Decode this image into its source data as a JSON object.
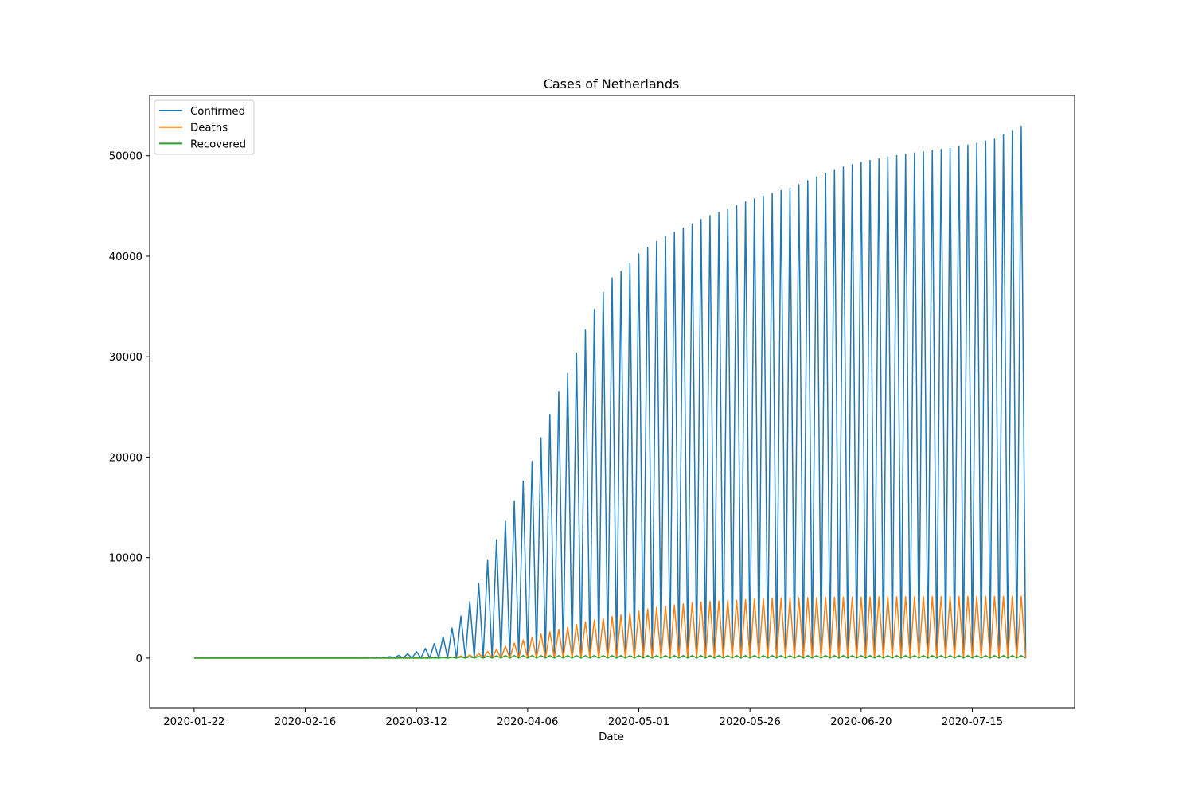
{
  "chart_data": {
    "type": "line",
    "title": "Cases of Netherlands",
    "xlabel": "Date",
    "ylabel": "",
    "x_start": "2020-01-22",
    "x_end": "2020-07-27",
    "xlim": [
      "2020-01-12",
      "2020-08-07"
    ],
    "ylim": [
      -5000,
      56000
    ],
    "x_ticks": [
      "2020-01-22",
      "2020-02-16",
      "2020-03-12",
      "2020-04-06",
      "2020-05-01",
      "2020-05-26",
      "2020-06-20",
      "2020-07-15"
    ],
    "y_ticks": [
      0,
      10000,
      20000,
      30000,
      40000,
      50000
    ],
    "legend_position": "top-left",
    "grid": false,
    "note_pattern": "each series alternates between its cumulative value and 0 on consecutive dates",
    "series": [
      {
        "name": "Confirmed",
        "color": "#1f77b4",
        "keyframes": [
          [
            "2020-01-22",
            0
          ],
          [
            "2020-02-26",
            0
          ],
          [
            "2020-03-01",
            10
          ],
          [
            "2020-03-05",
            82
          ],
          [
            "2020-03-08",
            265
          ],
          [
            "2020-03-11",
            503
          ],
          [
            "2020-03-14",
            959
          ],
          [
            "2020-03-17",
            1705
          ],
          [
            "2020-03-20",
            2994
          ],
          [
            "2020-03-23",
            4749
          ],
          [
            "2020-03-26",
            7431
          ],
          [
            "2020-03-29",
            10866
          ],
          [
            "2020-04-01",
            13614
          ],
          [
            "2020-04-04",
            16627
          ],
          [
            "2020-04-07",
            19580
          ],
          [
            "2020-04-10",
            23097
          ],
          [
            "2020-04-13",
            26551
          ],
          [
            "2020-04-16",
            29214
          ],
          [
            "2020-04-19",
            32655
          ],
          [
            "2020-04-22",
            35729
          ],
          [
            "2020-04-25",
            37845
          ],
          [
            "2020-04-28",
            38802
          ],
          [
            "2020-05-01",
            40236
          ],
          [
            "2020-05-06",
            41774
          ],
          [
            "2020-05-11",
            42788
          ],
          [
            "2020-05-16",
            43870
          ],
          [
            "2020-05-21",
            44700
          ],
          [
            "2020-05-26",
            45578
          ],
          [
            "2020-05-31",
            46257
          ],
          [
            "2020-06-05",
            46942
          ],
          [
            "2020-06-10",
            47903
          ],
          [
            "2020-06-15",
            48783
          ],
          [
            "2020-06-20",
            49345
          ],
          [
            "2020-06-25",
            49804
          ],
          [
            "2020-06-30",
            50147
          ],
          [
            "2020-07-05",
            50470
          ],
          [
            "2020-07-10",
            50746
          ],
          [
            "2020-07-15",
            51146
          ],
          [
            "2020-07-20",
            51657
          ],
          [
            "2020-07-25",
            52732
          ],
          [
            "2020-07-27",
            53151
          ]
        ]
      },
      {
        "name": "Deaths",
        "color": "#ff7f0e",
        "keyframes": [
          [
            "2020-01-22",
            0
          ],
          [
            "2020-03-05",
            0
          ],
          [
            "2020-03-10",
            4
          ],
          [
            "2020-03-15",
            20
          ],
          [
            "2020-03-20",
            106
          ],
          [
            "2020-03-25",
            356
          ],
          [
            "2020-03-30",
            864
          ],
          [
            "2020-04-04",
            1651
          ],
          [
            "2020-04-09",
            2396
          ],
          [
            "2020-04-14",
            2945
          ],
          [
            "2020-04-19",
            3601
          ],
          [
            "2020-04-24",
            4054
          ],
          [
            "2020-04-29",
            4475
          ],
          [
            "2020-05-04",
            4987
          ],
          [
            "2020-05-09",
            5288
          ],
          [
            "2020-05-14",
            5562
          ],
          [
            "2020-05-19",
            5680
          ],
          [
            "2020-05-24",
            5788
          ],
          [
            "2020-05-29",
            5903
          ],
          [
            "2020-06-03",
            5977
          ],
          [
            "2020-06-13",
            6044
          ],
          [
            "2020-06-23",
            6090
          ],
          [
            "2020-07-03",
            6113
          ],
          [
            "2020-07-13",
            6135
          ],
          [
            "2020-07-27",
            6147
          ]
        ]
      },
      {
        "name": "Recovered",
        "color": "#2ca02c",
        "keyframes": [
          [
            "2020-01-22",
            0
          ],
          [
            "2020-03-15",
            2
          ],
          [
            "2020-04-01",
            250
          ],
          [
            "2020-05-01",
            250
          ],
          [
            "2020-07-27",
            250
          ]
        ]
      }
    ]
  }
}
